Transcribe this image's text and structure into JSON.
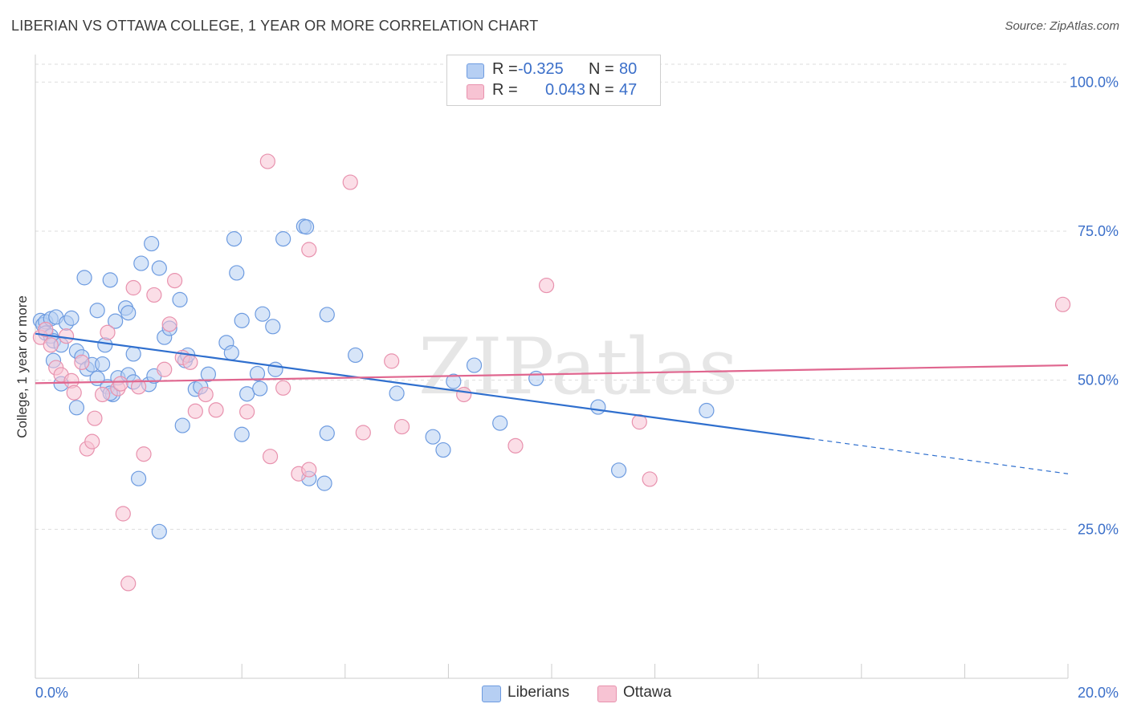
{
  "chart_data": {
    "type": "scatter",
    "title": "LIBERIAN VS OTTAWA COLLEGE, 1 YEAR OR MORE CORRELATION CHART",
    "source": "Source: ZipAtlas.com",
    "xlabel": "",
    "ylabel": "College, 1 year or more",
    "xlim": [
      0,
      20
    ],
    "ylim": [
      0,
      103
    ],
    "x_tick_labels": [
      "0.0%",
      "20.0%"
    ],
    "y_ticks": [
      25,
      50,
      75,
      100
    ],
    "y_tick_labels": [
      "25.0%",
      "50.0%",
      "75.0%",
      "100.0%"
    ],
    "watermark": "ZIPatlas",
    "legend": [
      {
        "name": "Liberians",
        "r_label": "R =",
        "r": "-0.325",
        "n_label": "N =",
        "n": "80"
      },
      {
        "name": "Ottawa",
        "r_label": "R =",
        "r": "0.043",
        "n_label": "N =",
        "n": "47"
      }
    ],
    "colors": {
      "Liberians_fill": "#b6cff3",
      "Liberians_stroke": "#6d9be0",
      "Liberians_line": "#2f6fce",
      "Ottawa_fill": "#f7c3d3",
      "Ottawa_stroke": "#e892ae",
      "Ottawa_line": "#e0668f",
      "tick_label": "#3b6fc9",
      "grid": "#dddddd"
    },
    "series": [
      {
        "name": "Liberians",
        "trend": {
          "x0": 0.0,
          "y0": 57.8,
          "x1": 15.0,
          "y1": 40.2,
          "dash_x1": 20.0,
          "dash_y1": 34.3
        },
        "points": [
          [
            0.1,
            60.0
          ],
          [
            0.15,
            59.3
          ],
          [
            0.2,
            59.8
          ],
          [
            0.3,
            60.3
          ],
          [
            0.2,
            57.9
          ],
          [
            0.3,
            57.4
          ],
          [
            0.35,
            56.6
          ],
          [
            0.4,
            60.6
          ],
          [
            0.5,
            55.9
          ],
          [
            0.6,
            59.6
          ],
          [
            0.7,
            60.4
          ],
          [
            0.35,
            53.3
          ],
          [
            0.8,
            54.9
          ],
          [
            0.9,
            53.9
          ],
          [
            0.5,
            49.4
          ],
          [
            0.8,
            45.4
          ],
          [
            1.0,
            51.9
          ],
          [
            1.1,
            52.6
          ],
          [
            1.2,
            50.3
          ],
          [
            1.3,
            52.7
          ],
          [
            1.4,
            48.9
          ],
          [
            1.5,
            47.6
          ],
          [
            1.6,
            50.4
          ],
          [
            1.8,
            50.9
          ],
          [
            1.9,
            49.7
          ],
          [
            2.2,
            49.3
          ],
          [
            2.3,
            50.7
          ],
          [
            0.95,
            67.2
          ],
          [
            1.45,
            66.8
          ],
          [
            1.2,
            61.7
          ],
          [
            1.55,
            59.9
          ],
          [
            1.75,
            62.1
          ],
          [
            1.8,
            61.3
          ],
          [
            1.35,
            55.9
          ],
          [
            1.9,
            54.4
          ],
          [
            2.05,
            69.6
          ],
          [
            2.25,
            72.9
          ],
          [
            2.4,
            68.8
          ],
          [
            2.5,
            57.2
          ],
          [
            2.6,
            58.7
          ],
          [
            2.8,
            63.5
          ],
          [
            2.9,
            53.3
          ],
          [
            2.95,
            54.2
          ],
          [
            3.1,
            48.5
          ],
          [
            3.2,
            48.9
          ],
          [
            3.35,
            51.0
          ],
          [
            3.7,
            56.3
          ],
          [
            3.8,
            54.6
          ],
          [
            3.85,
            73.7
          ],
          [
            3.9,
            68.0
          ],
          [
            4.0,
            60.0
          ],
          [
            4.1,
            47.7
          ],
          [
            4.3,
            51.1
          ],
          [
            4.35,
            48.6
          ],
          [
            4.4,
            61.1
          ],
          [
            4.6,
            59.0
          ],
          [
            4.65,
            51.8
          ],
          [
            4.8,
            73.7
          ],
          [
            5.2,
            75.8
          ],
          [
            5.25,
            75.7
          ],
          [
            5.65,
            61.0
          ],
          [
            6.2,
            54.2
          ],
          [
            7.0,
            47.8
          ],
          [
            7.7,
            40.5
          ],
          [
            7.9,
            38.3
          ],
          [
            8.1,
            49.8
          ],
          [
            8.5,
            52.5
          ],
          [
            9.0,
            42.8
          ],
          [
            9.7,
            50.3
          ],
          [
            10.9,
            45.5
          ],
          [
            11.3,
            34.9
          ],
          [
            13.0,
            44.9
          ],
          [
            2.0,
            33.5
          ],
          [
            2.4,
            24.6
          ],
          [
            2.85,
            42.4
          ],
          [
            4.0,
            40.9
          ],
          [
            5.3,
            33.5
          ],
          [
            5.6,
            32.7
          ],
          [
            5.65,
            41.1
          ],
          [
            1.45,
            47.8
          ]
        ]
      },
      {
        "name": "Ottawa",
        "trend": {
          "x0": 0.0,
          "y0": 49.5,
          "x1": 20.0,
          "y1": 52.5
        },
        "points": [
          [
            0.1,
            57.2
          ],
          [
            0.2,
            58.5
          ],
          [
            0.3,
            55.9
          ],
          [
            0.4,
            52.1
          ],
          [
            0.5,
            50.9
          ],
          [
            0.6,
            57.4
          ],
          [
            0.7,
            49.9
          ],
          [
            0.75,
            47.9
          ],
          [
            0.9,
            53.0
          ],
          [
            1.0,
            38.5
          ],
          [
            1.1,
            39.7
          ],
          [
            1.15,
            43.6
          ],
          [
            1.3,
            47.6
          ],
          [
            1.4,
            58.0
          ],
          [
            1.6,
            48.6
          ],
          [
            1.65,
            49.4
          ],
          [
            1.7,
            27.6
          ],
          [
            1.8,
            15.9
          ],
          [
            1.9,
            65.5
          ],
          [
            2.0,
            48.9
          ],
          [
            2.1,
            37.6
          ],
          [
            2.3,
            64.3
          ],
          [
            2.5,
            51.8
          ],
          [
            2.6,
            59.4
          ],
          [
            2.7,
            66.7
          ],
          [
            2.85,
            53.8
          ],
          [
            3.0,
            53.0
          ],
          [
            3.1,
            44.8
          ],
          [
            3.3,
            47.6
          ],
          [
            3.5,
            45.0
          ],
          [
            4.1,
            44.7
          ],
          [
            4.5,
            86.7
          ],
          [
            4.55,
            37.2
          ],
          [
            4.8,
            48.7
          ],
          [
            5.1,
            34.3
          ],
          [
            5.3,
            35.0
          ],
          [
            5.3,
            71.9
          ],
          [
            6.1,
            83.2
          ],
          [
            6.35,
            41.2
          ],
          [
            6.9,
            53.2
          ],
          [
            7.1,
            42.2
          ],
          [
            8.3,
            47.6
          ],
          [
            9.3,
            39.0
          ],
          [
            9.9,
            65.9
          ],
          [
            11.7,
            43.0
          ],
          [
            11.9,
            33.4
          ],
          [
            19.9,
            62.7
          ]
        ]
      }
    ]
  }
}
